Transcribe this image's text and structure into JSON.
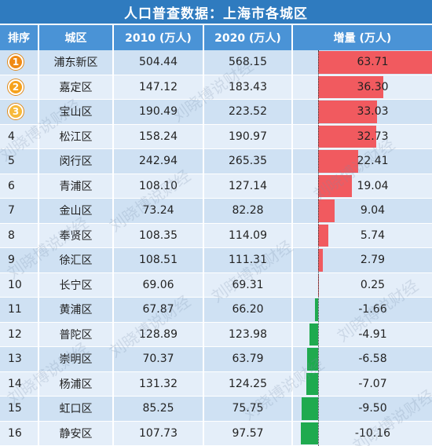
{
  "title": "人口普查数据：上海市各城区",
  "headers": {
    "rank": "排序",
    "district": "城区",
    "y2010": "2010 (万人)",
    "y2020": "2020 (万人)",
    "increase": "增量 (万人)"
  },
  "watermark": "刘晓博说财经",
  "colors": {
    "positive": "#f15a5f",
    "negative": "#1faa4f",
    "header": "#4a93d6",
    "title": "#2f7bbf"
  },
  "chart_data": {
    "type": "table",
    "columns": [
      "排序",
      "城区",
      "2010 (万人)",
      "2020 (万人)",
      "增量 (万人)"
    ],
    "rows": [
      {
        "rank": "1",
        "district": "浦东新区",
        "y2010": "504.44",
        "y2020": "568.15",
        "increase": "63.71",
        "value": 63.71
      },
      {
        "rank": "2",
        "district": "嘉定区",
        "y2010": "147.12",
        "y2020": "183.43",
        "increase": "36.30",
        "value": 36.3
      },
      {
        "rank": "3",
        "district": "宝山区",
        "y2010": "190.49",
        "y2020": "223.52",
        "increase": "33.03",
        "value": 33.03
      },
      {
        "rank": "4",
        "district": "松江区",
        "y2010": "158.24",
        "y2020": "190.97",
        "increase": "32.73",
        "value": 32.73
      },
      {
        "rank": "5",
        "district": "闵行区",
        "y2010": "242.94",
        "y2020": "265.35",
        "increase": "22.41",
        "value": 22.41
      },
      {
        "rank": "6",
        "district": "青浦区",
        "y2010": "108.10",
        "y2020": "127.14",
        "increase": "19.04",
        "value": 19.04
      },
      {
        "rank": "7",
        "district": "金山区",
        "y2010": "73.24",
        "y2020": "82.28",
        "increase": "9.04",
        "value": 9.04
      },
      {
        "rank": "8",
        "district": "奉贤区",
        "y2010": "108.35",
        "y2020": "114.09",
        "increase": "5.74",
        "value": 5.74
      },
      {
        "rank": "9",
        "district": "徐汇区",
        "y2010": "108.51",
        "y2020": "111.31",
        "increase": "2.79",
        "value": 2.79
      },
      {
        "rank": "10",
        "district": "长宁区",
        "y2010": "69.06",
        "y2020": "69.31",
        "increase": "0.25",
        "value": 0.25
      },
      {
        "rank": "11",
        "district": "黄浦区",
        "y2010": "67.87",
        "y2020": "66.20",
        "increase": "-1.66",
        "value": -1.66
      },
      {
        "rank": "12",
        "district": "普陀区",
        "y2010": "128.89",
        "y2020": "123.98",
        "increase": "-4.91",
        "value": -4.91
      },
      {
        "rank": "13",
        "district": "崇明区",
        "y2010": "70.37",
        "y2020": "63.79",
        "increase": "-6.58",
        "value": -6.58
      },
      {
        "rank": "14",
        "district": "杨浦区",
        "y2010": "131.32",
        "y2020": "124.25",
        "increase": "-7.07",
        "value": -7.07
      },
      {
        "rank": "15",
        "district": "虹口区",
        "y2010": "85.25",
        "y2020": "75.75",
        "increase": "-9.50",
        "value": -9.5
      },
      {
        "rank": "16",
        "district": "静安区",
        "y2010": "107.73",
        "y2020": "97.57",
        "increase": "-10.16",
        "value": -10.16
      }
    ]
  }
}
